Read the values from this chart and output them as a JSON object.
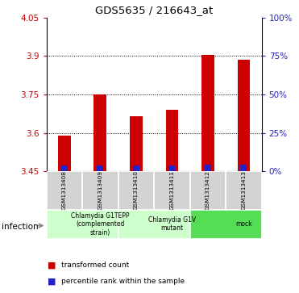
{
  "title": "GDS5635 / 216643_at",
  "samples": [
    "GSM1313408",
    "GSM1313409",
    "GSM1313410",
    "GSM1313411",
    "GSM1313412",
    "GSM1313413"
  ],
  "red_values": [
    3.59,
    3.75,
    3.665,
    3.69,
    3.905,
    3.885
  ],
  "blue_values": [
    3.472,
    3.472,
    3.472,
    3.472,
    3.475,
    3.475
  ],
  "base_value": 3.45,
  "ylim_left": [
    3.45,
    4.05
  ],
  "yticks_left": [
    3.45,
    3.6,
    3.75,
    3.9,
    4.05
  ],
  "yticks_right": [
    0,
    25,
    50,
    75,
    100
  ],
  "bar_width": 0.35,
  "blue_bar_width": 0.18,
  "red_color": "#cc0000",
  "blue_color": "#2222cc",
  "left_tick_color": "#cc0000",
  "right_tick_color": "#2222bb",
  "legend_red": "transformed count",
  "legend_blue": "percentile rank within the sample",
  "group_defs": [
    {
      "start": 0,
      "end": 2,
      "label": "Chlamydia G1TEPP\n(complemented\nstrain)",
      "color": "#ccffcc"
    },
    {
      "start": 2,
      "end": 4,
      "label": "Chlamydia G1V\nmutant",
      "color": "#ccffcc"
    },
    {
      "start": 4,
      "end": 6,
      "label": "mock",
      "color": "#55dd55"
    }
  ],
  "sample_box_color": "#d3d3d3",
  "infection_label": "infection"
}
